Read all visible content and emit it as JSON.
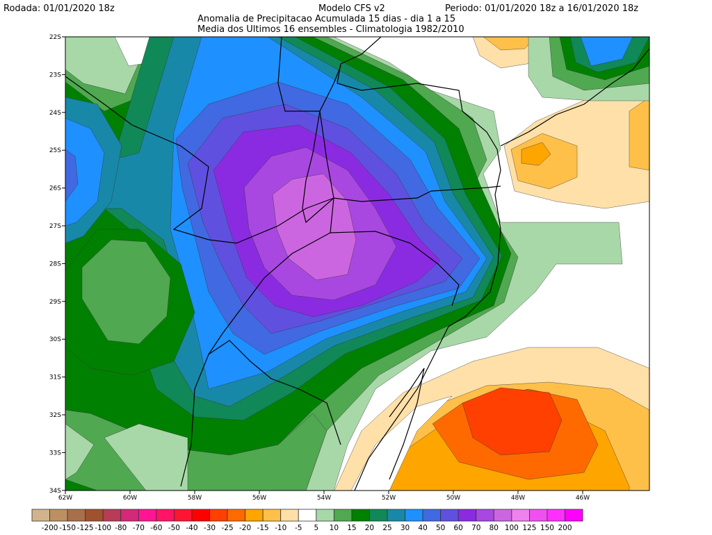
{
  "header": {
    "run": "Rodada: 01/01/2020 18z",
    "model": "Modelo CFS v2",
    "period": "Periodo: 01/01/2020 18z a 16/01/2020 18z",
    "subtitle1": "Anomalia de Precipitacao Acumulada 15 dias - dia 1 a 15",
    "subtitle2": "Media dos Ultimos 16 ensembles - Climatologia 1982/2010"
  },
  "axes": {
    "lon_labels": [
      "62W",
      "60W",
      "58W",
      "56W",
      "54W",
      "52W",
      "50W",
      "48W",
      "46W"
    ],
    "lat_labels": [
      "22S",
      "23S",
      "24S",
      "25S",
      "26S",
      "27S",
      "28S",
      "29S",
      "30S",
      "31S",
      "32S",
      "33S",
      "34S"
    ]
  },
  "legend": {
    "labels": [
      "-200",
      "-150",
      "-125",
      "-100",
      "-80",
      "-70",
      "-60",
      "-50",
      "-40",
      "-30",
      "-25",
      "-20",
      "-15",
      "-10",
      "-5",
      "5",
      "10",
      "15",
      "20",
      "25",
      "30",
      "40",
      "50",
      "60",
      "70",
      "80",
      "100",
      "125",
      "150",
      "200"
    ],
    "colors": [
      "#d2b48c",
      "#bc9060",
      "#a8704a",
      "#a0522d",
      "#b83c55",
      "#d42878",
      "#ff1493",
      "#ff1466",
      "#ff1432",
      "#ff0000",
      "#ff4000",
      "#ff6a00",
      "#ffa500",
      "#ffc04a",
      "#ffe0a8",
      "#ffffff",
      "#a8d8a8",
      "#50a850",
      "#008000",
      "#108858",
      "#1888a8",
      "#1e90ff",
      "#4169e1",
      "#6050e0",
      "#8a2be2",
      "#a848e0",
      "#cc66e0",
      "#ee82ee",
      "#f050f0",
      "#ff30ff",
      "#ff00ff"
    ]
  }
}
